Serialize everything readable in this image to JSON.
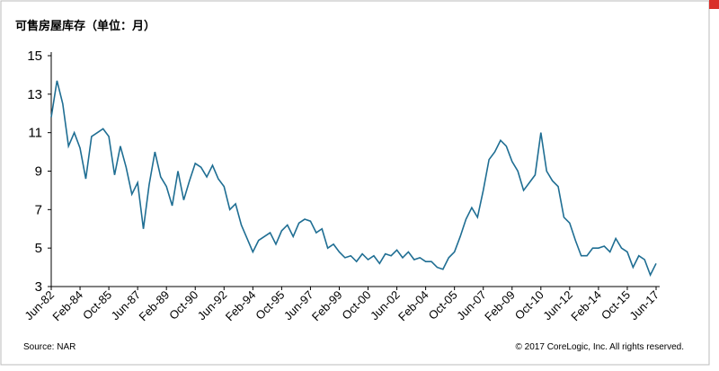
{
  "chart_data": {
    "type": "line",
    "title": "可售房屋库存（单位：月）",
    "source": "Source: NAR",
    "copyright": "© 2017 CoreLogic, Inc. All rights reserved.",
    "categories": [
      "Jun-82",
      null,
      null,
      null,
      null,
      "Feb-84",
      null,
      null,
      null,
      null,
      "Oct-85",
      null,
      null,
      null,
      null,
      "Jun-87",
      null,
      null,
      null,
      null,
      "Feb-89",
      null,
      null,
      null,
      null,
      "Oct-90",
      null,
      null,
      null,
      null,
      "Jun-92",
      null,
      null,
      null,
      null,
      "Feb-94",
      null,
      null,
      null,
      null,
      "Oct-95",
      null,
      null,
      null,
      null,
      "Jun-97",
      null,
      null,
      null,
      null,
      "Feb-99",
      null,
      null,
      null,
      null,
      "Oct-00",
      null,
      null,
      null,
      null,
      "Jun-02",
      null,
      null,
      null,
      null,
      "Feb-04",
      null,
      null,
      null,
      null,
      "Oct-05",
      null,
      null,
      null,
      null,
      "Jun-07",
      null,
      null,
      null,
      null,
      "Feb-09",
      null,
      null,
      null,
      null,
      "Oct-10",
      null,
      null,
      null,
      null,
      "Jun-12",
      null,
      null,
      null,
      null,
      "Feb-14",
      null,
      null,
      null,
      null,
      "Oct-15",
      null,
      null,
      null,
      null,
      "Jun-17"
    ],
    "series": [
      {
        "color": "#1f6e93",
        "values": [
          11.8,
          13.7,
          12.5,
          10.3,
          11.0,
          10.2,
          8.6,
          10.8,
          11.0,
          11.2,
          10.8,
          8.8,
          10.3,
          9.2,
          7.8,
          8.4,
          6.0,
          8.3,
          10.0,
          8.7,
          8.2,
          7.2,
          9.0,
          7.5,
          8.5,
          9.4,
          9.2,
          8.7,
          9.3,
          8.6,
          8.2,
          7.0,
          7.3,
          6.2,
          5.5,
          4.8,
          5.4,
          5.6,
          5.8,
          5.2,
          5.9,
          6.2,
          5.6,
          6.3,
          6.5,
          6.4,
          5.8,
          6.0,
          5.0,
          5.2,
          4.8,
          4.5,
          4.6,
          4.3,
          4.7,
          4.4,
          4.6,
          4.2,
          4.7,
          4.6,
          4.9,
          4.5,
          4.8,
          4.4,
          4.5,
          4.3,
          4.3,
          4.0,
          3.9,
          4.5,
          4.8,
          5.6,
          6.5,
          7.1,
          6.6,
          8.0,
          9.6,
          10.0,
          10.6,
          10.3,
          9.5,
          9.0,
          8.0,
          8.4,
          8.8,
          11.0,
          9.0,
          8.5,
          8.2,
          6.6,
          6.3,
          5.4,
          4.6,
          4.6,
          5.0,
          5.0,
          5.1,
          4.8,
          5.5,
          5.0,
          4.8,
          4.0,
          4.6,
          4.4,
          3.6,
          4.2
        ]
      }
    ],
    "ylim": [
      3,
      15
    ],
    "yticks": [
      3,
      5,
      7,
      9,
      11,
      13,
      15
    ]
  }
}
